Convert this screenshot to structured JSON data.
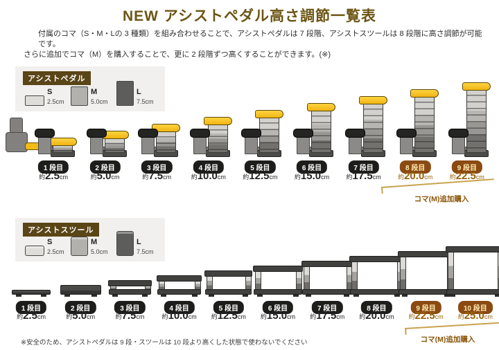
{
  "title": "NEW アシストペダル高さ調節一覧表",
  "description": {
    "line1": "付属のコマ（S・M・Lの 3 種類）を組み合わせることで、アシストペダルは 7 段階、アシストスツールは 8 段階に高さ調節が可能です。",
    "line2": "さらに追加でコマ（M）を購入することで、更に 2 段階ずつ高くすることができます。(※)"
  },
  "labels": {
    "approx": "約",
    "unit": "cm",
    "extra_purchase": "コマ(M)追加購入"
  },
  "pedal": {
    "section_label": "アシストペダル",
    "koma": [
      {
        "name": "S",
        "size": "2.5cm"
      },
      {
        "name": "M",
        "size": "5.0cm"
      },
      {
        "name": "L",
        "size": "7.5cm"
      }
    ],
    "steps": [
      {
        "label": "1 段目",
        "value": "2.5",
        "highlight": false
      },
      {
        "label": "2 段目",
        "value": "5.0",
        "highlight": false
      },
      {
        "label": "3 段目",
        "value": "7.5",
        "highlight": false
      },
      {
        "label": "4 段目",
        "value": "10.0",
        "highlight": false
      },
      {
        "label": "5 段目",
        "value": "12.5",
        "highlight": false
      },
      {
        "label": "6 段目",
        "value": "15.0",
        "highlight": false
      },
      {
        "label": "7 段目",
        "value": "17.5",
        "highlight": false
      },
      {
        "label": "8 段目",
        "value": "20.0",
        "highlight": true
      },
      {
        "label": "9 段目",
        "value": "22.5",
        "highlight": true
      }
    ]
  },
  "stool": {
    "section_label": "アシストスツール",
    "koma": [
      {
        "name": "S",
        "size": "2.5cm"
      },
      {
        "name": "M",
        "size": "5.0cm"
      },
      {
        "name": "L",
        "size": "7.5cm"
      }
    ],
    "steps": [
      {
        "label": "1 段目",
        "value": "2.5",
        "highlight": false
      },
      {
        "label": "2 段目",
        "value": "5.0",
        "highlight": false
      },
      {
        "label": "3 段目",
        "value": "7.5",
        "highlight": false
      },
      {
        "label": "4 段目",
        "value": "10.0",
        "highlight": false
      },
      {
        "label": "5 段目",
        "value": "12.5",
        "highlight": false
      },
      {
        "label": "6 段目",
        "value": "15.0",
        "highlight": false
      },
      {
        "label": "7 段目",
        "value": "17.5",
        "highlight": false
      },
      {
        "label": "8 段目",
        "value": "20.0",
        "highlight": false
      },
      {
        "label": "9 段目",
        "value": "22.5",
        "highlight": true
      },
      {
        "label": "10 段目",
        "value": "25.0",
        "highlight": true
      }
    ]
  },
  "footnote": "※安全のため、アシストペダルは 9 段・スツールは 10 段より高くした状態で使わないでください",
  "colors": {
    "accent_brown": "#6b5514",
    "label_box_brown": "#5a4517",
    "badge_dark": "#1d1d1b",
    "badge_highlight_bg": "#8a4a12",
    "badge_highlight_text": "#ffe9ae",
    "highlight_text": "#96600a",
    "pedal_yellow": "#f2bb16",
    "bracket_gold": "#c8a34b",
    "panel_gray": "#f1f0ee"
  }
}
